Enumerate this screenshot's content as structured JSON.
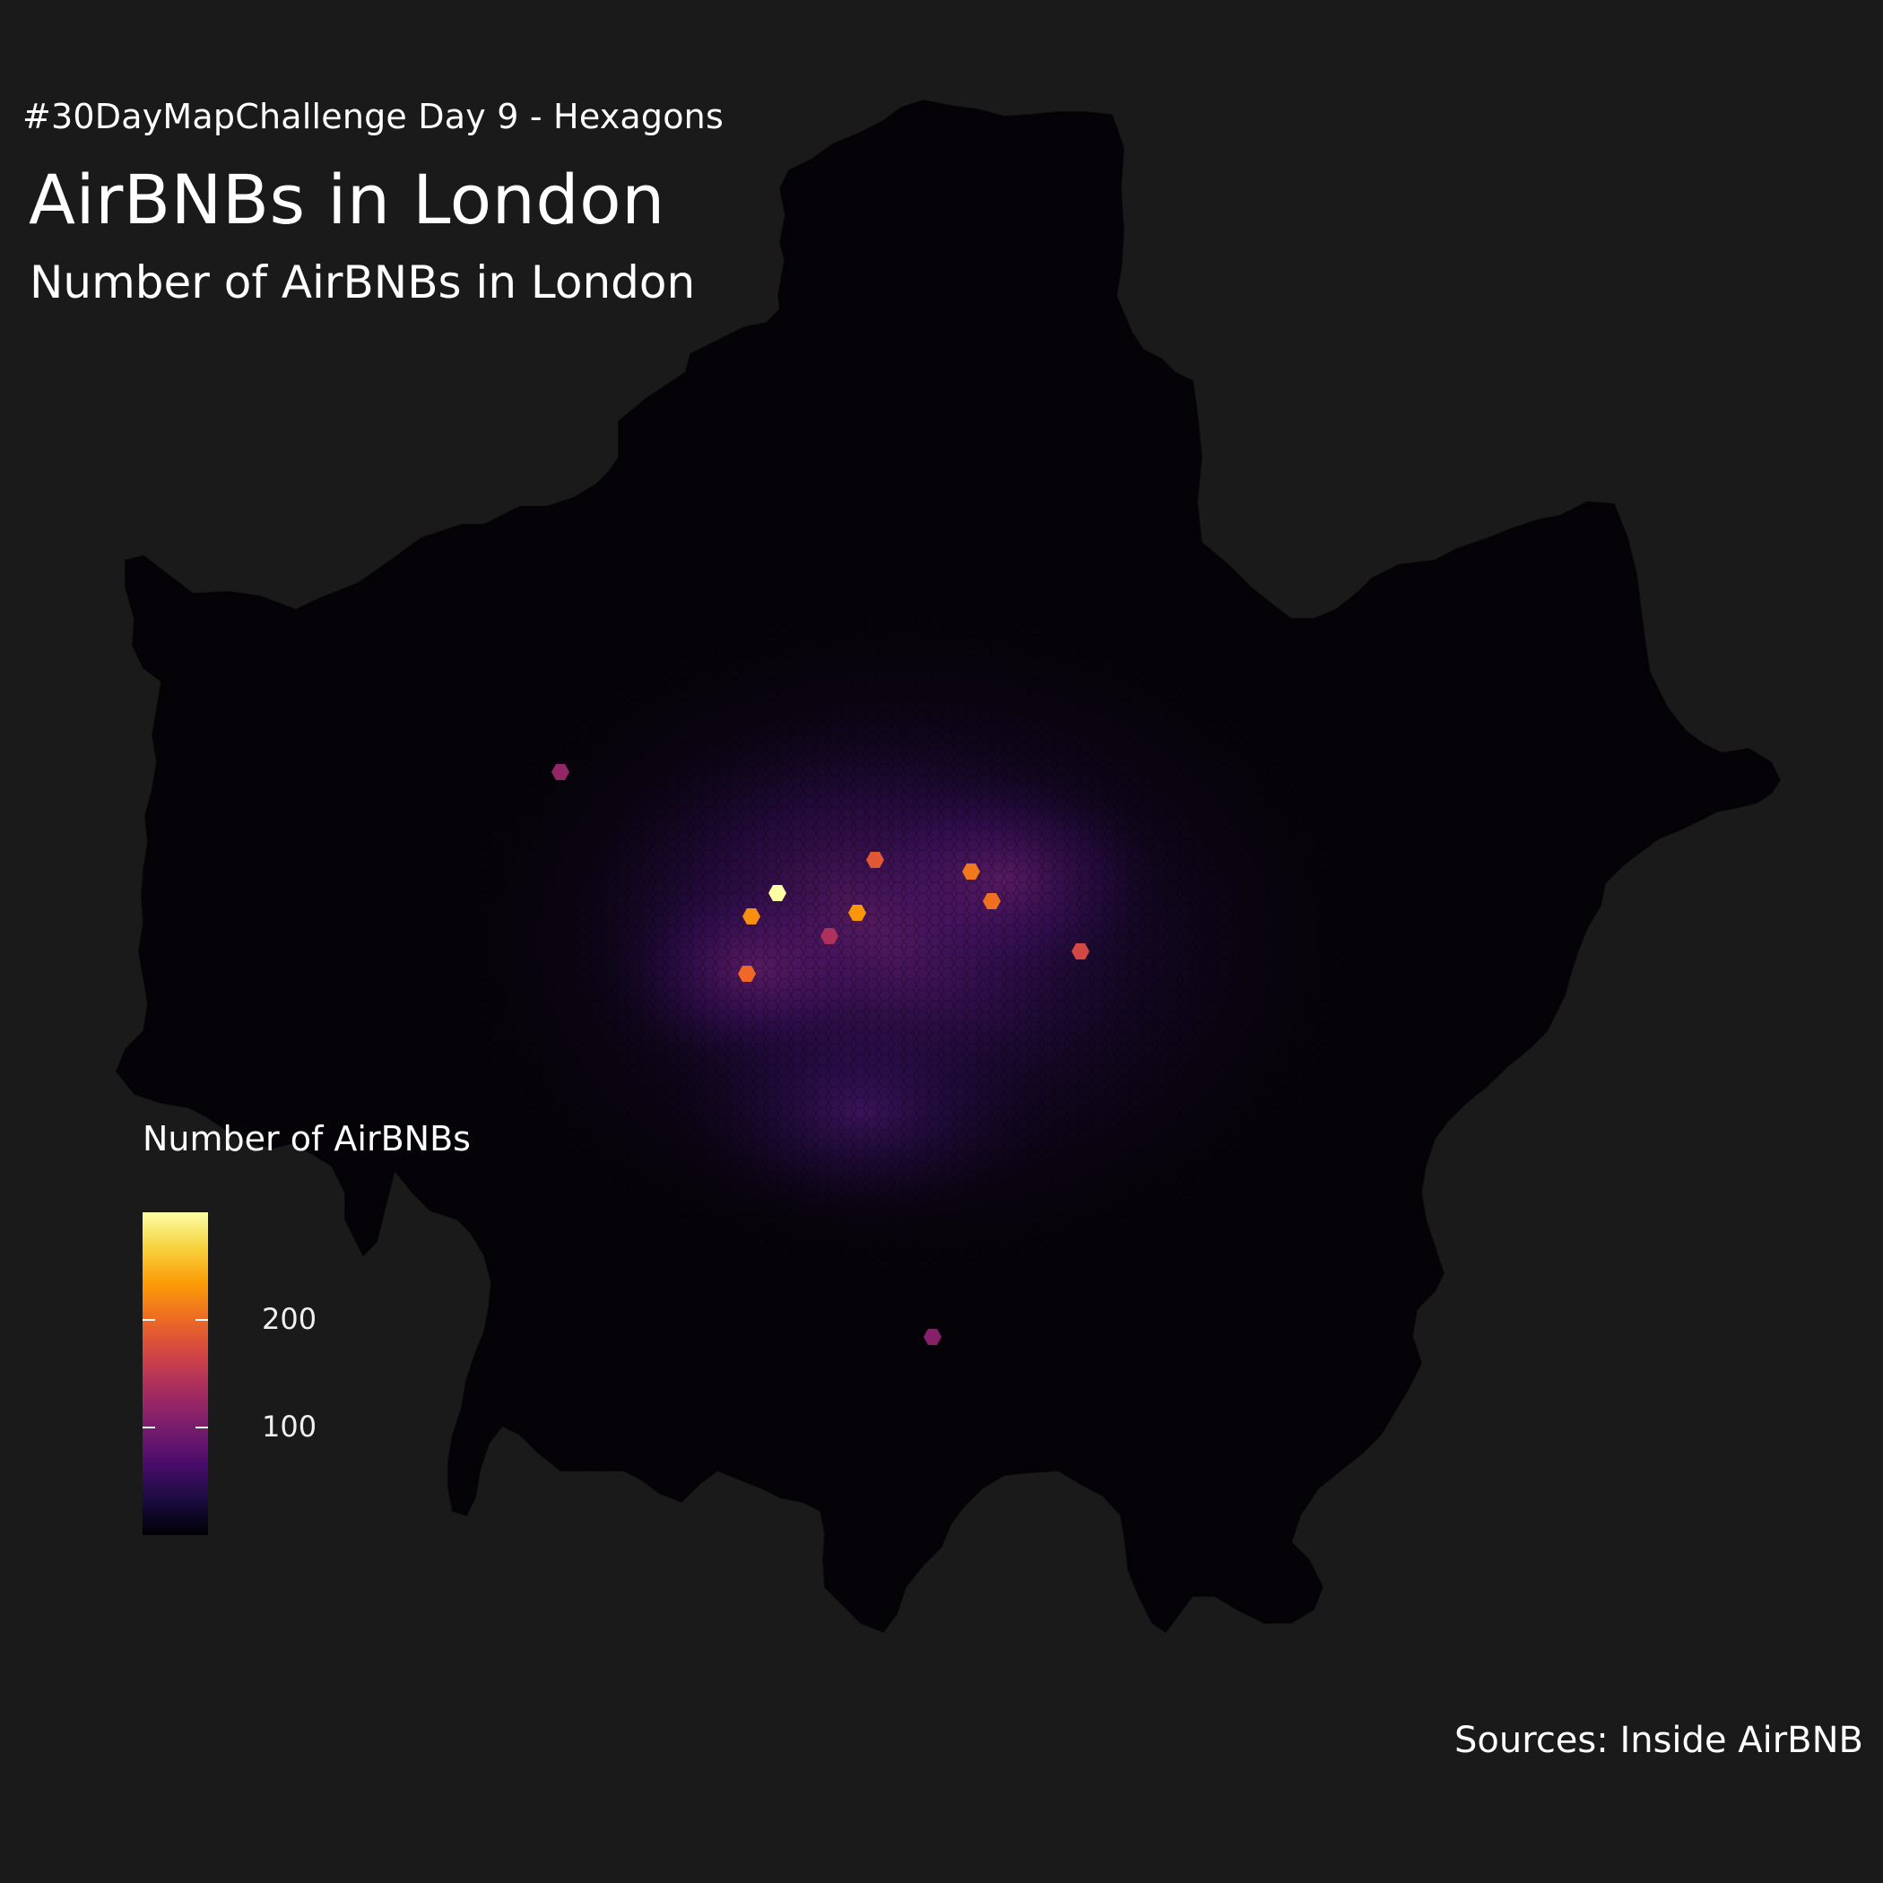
{
  "header": {
    "tag": "#30DayMapChallenge Day 9 - Hexagons",
    "title": "AirBNBs in London",
    "subtitle": "Number of AirBNBs in London"
  },
  "caption": "Sources: Inside AirBNB",
  "legend": {
    "title": "Number of AirBNBs",
    "ticks": [
      {
        "value": 100,
        "label": "100"
      },
      {
        "value": 200,
        "label": "200"
      }
    ],
    "min": 0,
    "max": 300,
    "palette": "inferno",
    "colors": [
      "#000004",
      "#1b0c41",
      "#4a0c6b",
      "#781c6d",
      "#a52c60",
      "#cf4446",
      "#ed6925",
      "#fb9b06",
      "#f7d13d",
      "#fcffa4"
    ]
  },
  "map": {
    "background": "#1a1a1a",
    "no_data_color": "#040307",
    "hotspots": [
      {
        "id": "h1",
        "value": 300
      },
      {
        "id": "h2",
        "value": 230
      },
      {
        "id": "h3",
        "value": 225
      },
      {
        "id": "h4",
        "value": 210
      },
      {
        "id": "h5",
        "value": 205
      },
      {
        "id": "h6",
        "value": 200
      },
      {
        "id": "h7",
        "value": 185
      },
      {
        "id": "h8",
        "value": 170
      },
      {
        "id": "h9",
        "value": 140
      },
      {
        "id": "h10",
        "value": 120
      },
      {
        "id": "h11",
        "value": 110
      }
    ]
  }
}
